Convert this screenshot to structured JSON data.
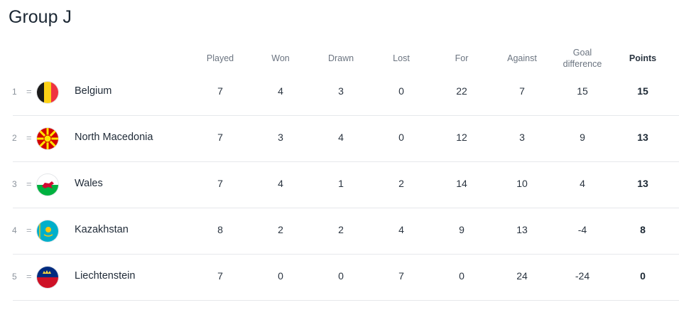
{
  "title": "Group J",
  "columns": {
    "played": "Played",
    "won": "Won",
    "drawn": "Drawn",
    "lost": "Lost",
    "for": "For",
    "against": "Against",
    "goal_difference": "Goal difference",
    "points": "Points"
  },
  "rows": [
    {
      "rank": "1",
      "movement": "=",
      "flag": "belgium-flag-icon",
      "team": "Belgium",
      "played": "7",
      "won": "4",
      "drawn": "3",
      "lost": "0",
      "for": "22",
      "against": "7",
      "gd": "15",
      "points": "15"
    },
    {
      "rank": "2",
      "movement": "=",
      "flag": "north-macedonia-flag-icon",
      "team": "North Macedonia",
      "played": "7",
      "won": "3",
      "drawn": "4",
      "lost": "0",
      "for": "12",
      "against": "3",
      "gd": "9",
      "points": "13"
    },
    {
      "rank": "3",
      "movement": "=",
      "flag": "wales-flag-icon",
      "team": "Wales",
      "played": "7",
      "won": "4",
      "drawn": "1",
      "lost": "2",
      "for": "14",
      "against": "10",
      "gd": "4",
      "points": "13"
    },
    {
      "rank": "4",
      "movement": "=",
      "flag": "kazakhstan-flag-icon",
      "team": "Kazakhstan",
      "played": "8",
      "won": "2",
      "drawn": "2",
      "lost": "4",
      "for": "9",
      "against": "13",
      "gd": "-4",
      "points": "8"
    },
    {
      "rank": "5",
      "movement": "=",
      "flag": "liechtenstein-flag-icon",
      "team": "Liechtenstein",
      "played": "7",
      "won": "0",
      "drawn": "0",
      "lost": "7",
      "for": "0",
      "against": "24",
      "gd": "-24",
      "points": "0"
    }
  ]
}
